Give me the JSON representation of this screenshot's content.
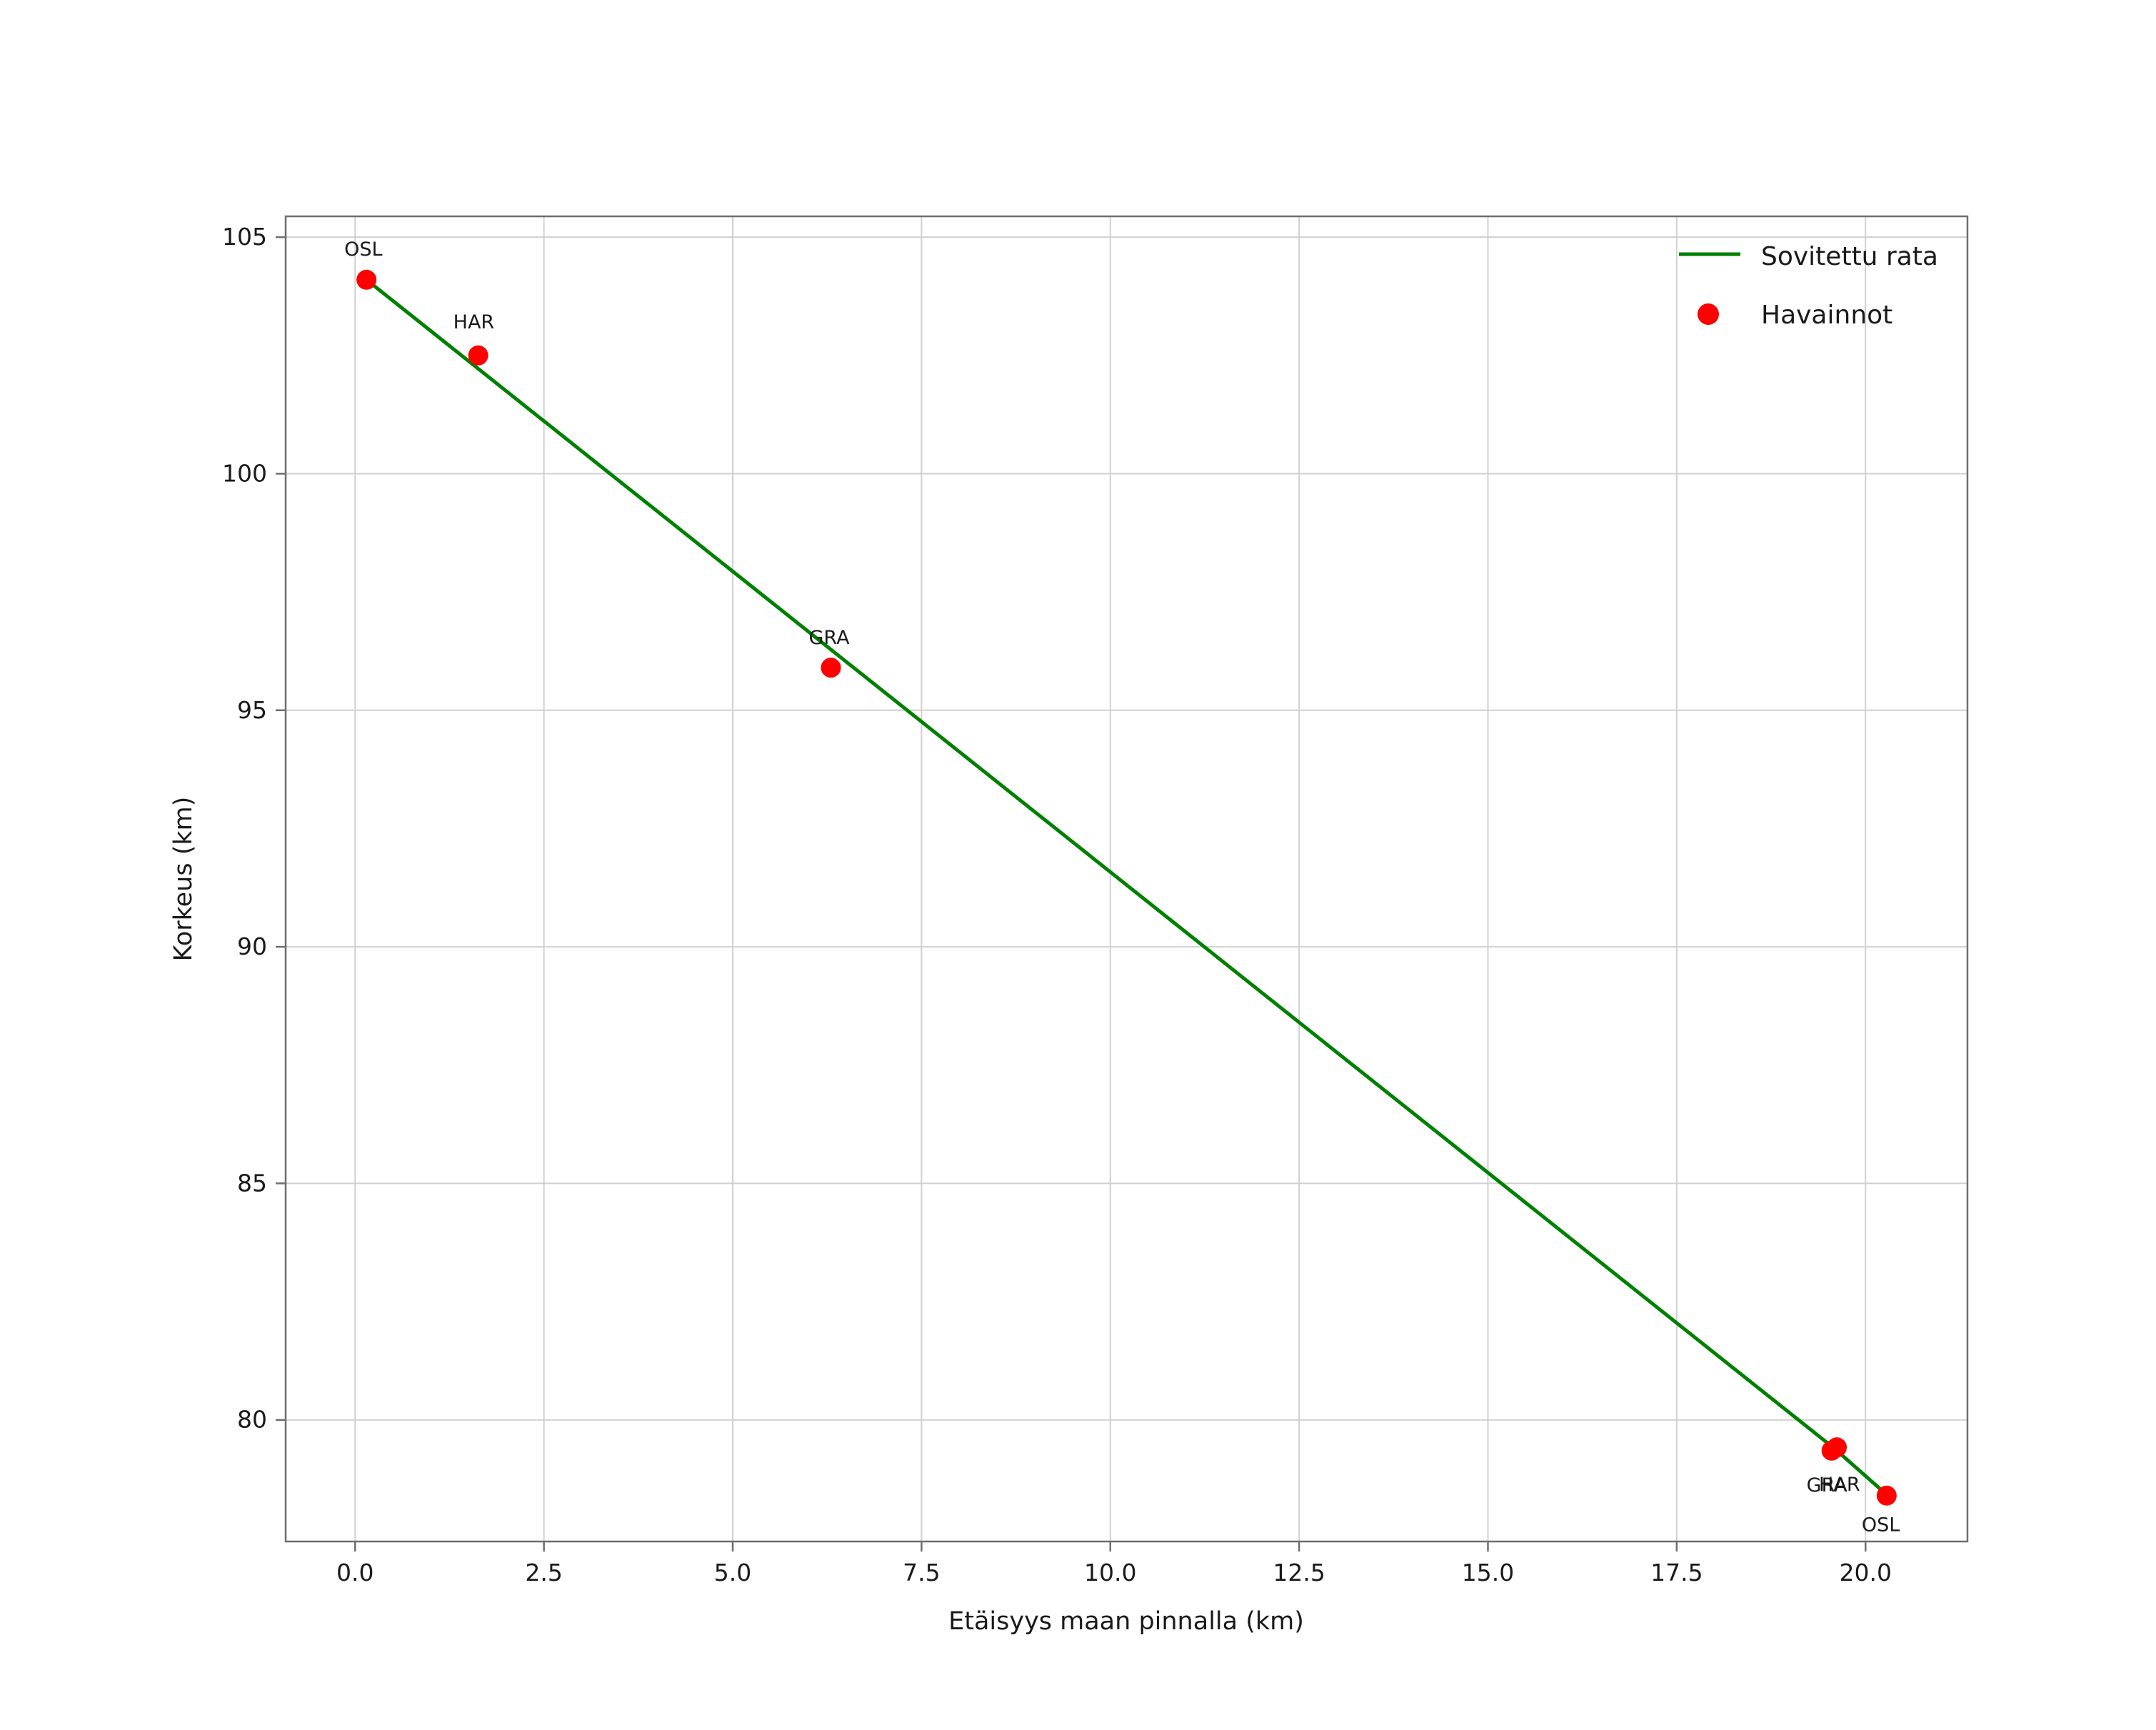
{
  "figure": {
    "background": "#ffffff"
  },
  "chart_data": {
    "type": "scatter",
    "title": "",
    "xlabel": "Etäisyys maan pinnalla (km)",
    "ylabel": "Korkeus (km)",
    "xlim": [
      -0.92,
      21.35
    ],
    "ylim": [
      77.43,
      105.44
    ],
    "grid": true,
    "xticks": [
      0,
      2.5,
      5,
      7.5,
      10,
      12.5,
      15,
      17.5,
      20
    ],
    "xtick_labels": [
      "0.0",
      "2.5",
      "5.0",
      "7.5",
      "10.0",
      "12.5",
      "15.0",
      "17.5",
      "20.0"
    ],
    "yticks": [
      80,
      85,
      90,
      95,
      100,
      105
    ],
    "ytick_labels": [
      "80",
      "85",
      "90",
      "95",
      "100",
      "105"
    ],
    "legend": {
      "position": "upper right",
      "entries": [
        {
          "label": "Sovitettu rata",
          "type": "line",
          "color": "#008000"
        },
        {
          "label": "Havainnot",
          "type": "marker",
          "color": "#ff0000"
        }
      ]
    },
    "series": [
      {
        "name": "Sovitettu rata",
        "type": "line",
        "color": "#008000",
        "points": [
          [
            0.15,
            104.1
          ],
          [
            19.6,
            79.38
          ],
          [
            20.28,
            78.42
          ]
        ]
      },
      {
        "name": "Havainnot",
        "type": "scatter",
        "color": "#ff0000",
        "marker_radius": 14,
        "points": [
          {
            "label": "OSL",
            "x": 0.15,
            "y": 104.1,
            "label_dx": -31,
            "label_dy": -34
          },
          {
            "label": "HAR",
            "x": 1.63,
            "y": 102.5,
            "label_dx": -35,
            "label_dy": -38
          },
          {
            "label": "GRA",
            "x": 6.3,
            "y": 95.9,
            "label_dx": -31,
            "label_dy": -33
          },
          {
            "label": "GRA",
            "x": 19.55,
            "y": 79.35,
            "label_dx": -35,
            "label_dy": 57
          },
          {
            "label": "HAR",
            "x": 19.62,
            "y": 79.42,
            "label_dx": -25,
            "label_dy": 61
          },
          {
            "label": "OSL",
            "x": 20.28,
            "y": 78.4,
            "label_dx": -35,
            "label_dy": 50
          }
        ]
      }
    ]
  }
}
